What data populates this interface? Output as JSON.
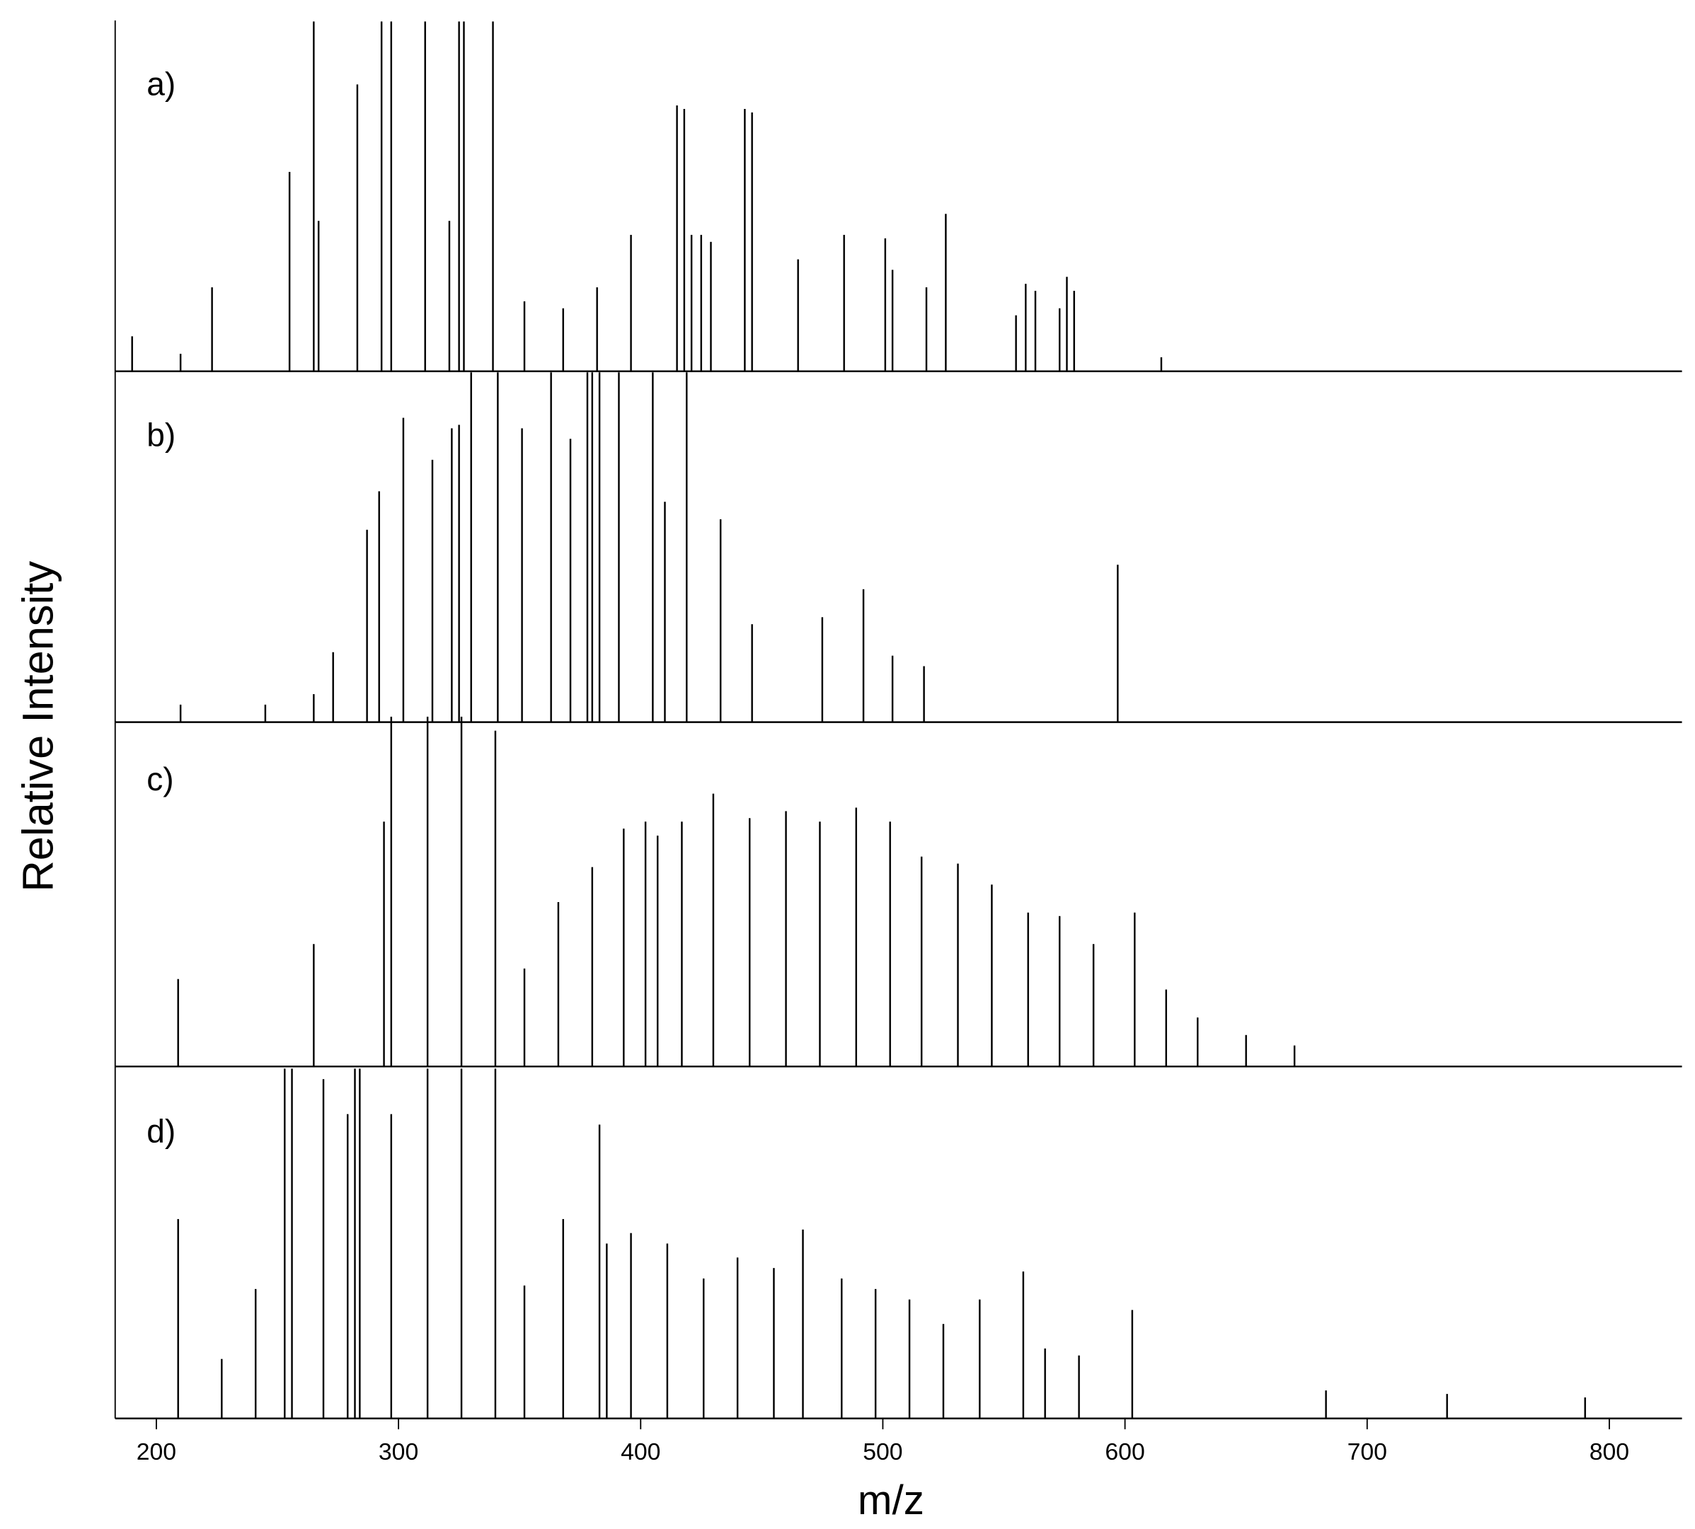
{
  "chart_data": [
    {
      "type": "bar",
      "title": "a)",
      "ylabel": "Relative Intensity",
      "color": "#000000",
      "xlim": [
        183,
        830
      ],
      "ylim": [
        0,
        100
      ],
      "x": [
        190,
        210,
        223,
        255,
        265,
        267,
        283,
        293,
        297,
        311,
        321,
        325,
        327,
        339,
        352,
        368,
        382,
        396,
        415,
        418,
        421,
        425,
        429,
        443,
        446,
        465,
        484,
        501,
        504,
        518,
        526,
        555,
        559,
        563,
        573,
        576,
        579,
        615
      ],
      "values": [
        10,
        5,
        24,
        57,
        100,
        43,
        82,
        100,
        100,
        100,
        43,
        100,
        100,
        100,
        20,
        18,
        24,
        39,
        76,
        75,
        39,
        39,
        37,
        75,
        74,
        32,
        39,
        38,
        29,
        24,
        45,
        16,
        25,
        23,
        18,
        27,
        23,
        4
      ]
    },
    {
      "type": "bar",
      "title": "b)",
      "color": "#000000",
      "xlim": [
        183,
        830
      ],
      "ylim": [
        0,
        100
      ],
      "x": [
        210,
        245,
        265,
        273,
        287,
        292,
        302,
        314,
        322,
        325,
        330,
        341,
        351,
        363,
        371,
        378,
        380,
        383,
        391,
        405,
        410,
        419,
        433,
        446,
        475,
        492,
        504,
        517,
        597
      ],
      "values": [
        5,
        5,
        8,
        20,
        55,
        66,
        87,
        75,
        84,
        85,
        100,
        100,
        84,
        100,
        81,
        100,
        100,
        100,
        100,
        100,
        63,
        100,
        58,
        28,
        30,
        38,
        19,
        16,
        45
      ]
    },
    {
      "type": "bar",
      "title": "c)",
      "color": "#000000",
      "xlim": [
        183,
        830
      ],
      "ylim": [
        0,
        100
      ],
      "x": [
        209,
        265,
        294,
        297,
        312,
        326,
        340,
        352,
        366,
        380,
        393,
        402,
        407,
        417,
        430,
        445,
        460,
        474,
        489,
        503,
        516,
        531,
        545,
        560,
        573,
        587,
        604,
        617,
        630,
        650,
        670
      ],
      "values": [
        25,
        35,
        70,
        100,
        100,
        100,
        96,
        28,
        47,
        57,
        68,
        70,
        66,
        70,
        78,
        71,
        73,
        70,
        74,
        70,
        60,
        58,
        52,
        44,
        43,
        35,
        44,
        22,
        14,
        9,
        6
      ]
    },
    {
      "type": "bar",
      "title": "d)",
      "xlabel": "m/z",
      "color": "#000000",
      "xlim": [
        183,
        830
      ],
      "ylim": [
        0,
        100
      ],
      "xticks": [
        200,
        300,
        400,
        500,
        600,
        700,
        800
      ],
      "x": [
        209,
        227,
        241,
        253,
        256,
        269,
        279,
        282,
        284,
        297,
        312,
        326,
        340,
        352,
        368,
        383,
        386,
        396,
        411,
        426,
        440,
        455,
        467,
        483,
        497,
        511,
        525,
        540,
        558,
        567,
        581,
        603,
        683,
        733,
        790
      ],
      "values": [
        57,
        17,
        37,
        100,
        100,
        97,
        87,
        100,
        100,
        87,
        100,
        100,
        100,
        38,
        57,
        84,
        50,
        53,
        50,
        40,
        46,
        43,
        54,
        40,
        37,
        34,
        27,
        34,
        42,
        20,
        18,
        31,
        8,
        7,
        6
      ]
    }
  ]
}
